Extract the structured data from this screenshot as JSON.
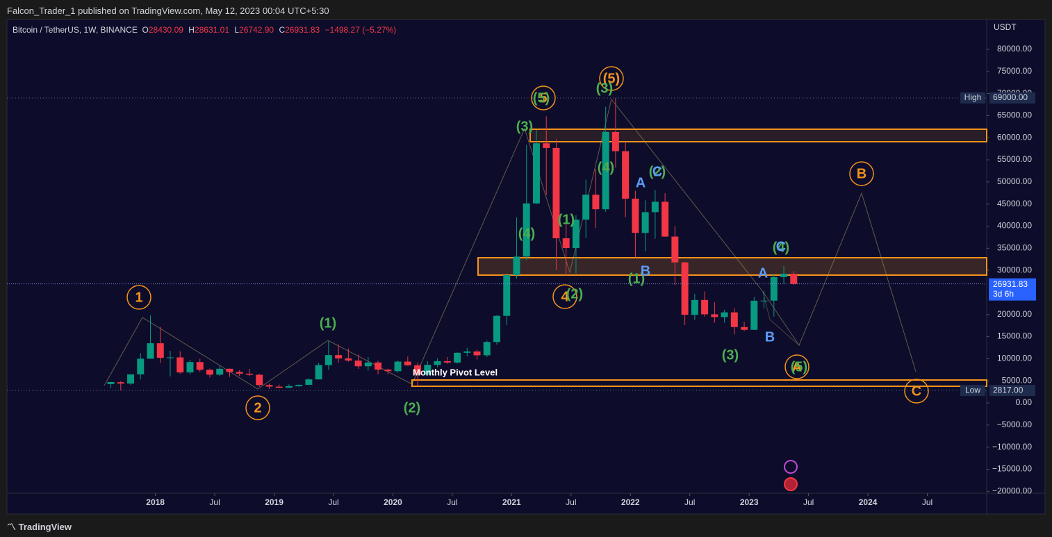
{
  "page": {
    "publisher": "Falcon_Trader_1 published on TradingView.com, May 12, 2023 00:04 UTC+5:30",
    "brand": "TradingView"
  },
  "chart_data": {
    "type": "candlestick",
    "legend": {
      "symbol": "Bitcoin / TetherUS, 1W, BINANCE",
      "open": {
        "label": "O",
        "value": "28430.09"
      },
      "high": {
        "label": "H",
        "value": "28631.01"
      },
      "low": {
        "label": "L",
        "value": "26742.90"
      },
      "close": {
        "label": "C",
        "value": "26931.83"
      },
      "change": "−1498.27 (−5.27%)"
    },
    "y_unit": "USDT",
    "up_color": "#089981",
    "down_color": "#f23645",
    "x": [
      "2017-08",
      "2017-09",
      "2017-10",
      "2017-11",
      "2017-12",
      "2018-01",
      "2018-02",
      "2018-03",
      "2018-04",
      "2018-05",
      "2018-06",
      "2018-07",
      "2018-08",
      "2018-09",
      "2018-10",
      "2018-11",
      "2018-12",
      "2019-01",
      "2019-02",
      "2019-03",
      "2019-04",
      "2019-05",
      "2019-06",
      "2019-07",
      "2019-08",
      "2019-09",
      "2019-10",
      "2019-11",
      "2019-12",
      "2020-01",
      "2020-02",
      "2020-03",
      "2020-04",
      "2020-05",
      "2020-06",
      "2020-07",
      "2020-08",
      "2020-09",
      "2020-10",
      "2020-11",
      "2020-12",
      "2021-01",
      "2021-02",
      "2021-03",
      "2021-04",
      "2021-05",
      "2021-06",
      "2021-07",
      "2021-08",
      "2021-09",
      "2021-10",
      "2021-11",
      "2021-12",
      "2022-01",
      "2022-02",
      "2022-03",
      "2022-04",
      "2022-05",
      "2022-06",
      "2022-07",
      "2022-08",
      "2022-09",
      "2022-10",
      "2022-11",
      "2022-12",
      "2023-01",
      "2023-02",
      "2023-03",
      "2023-04",
      "2023-05"
    ],
    "open": [
      4261,
      4689,
      4378,
      6463,
      10000,
      13500,
      10200,
      10300,
      6900,
      9240,
      7490,
      6390,
      7730,
      7000,
      6620,
      6370,
      4040,
      3690,
      3440,
      3810,
      4100,
      5320,
      8570,
      10820,
      10080,
      9590,
      8290,
      9150,
      7540,
      7190,
      9350,
      8520,
      6410,
      8620,
      9450,
      9140,
      11340,
      11650,
      10780,
      13790,
      19700,
      28920,
      33100,
      45140,
      58740,
      57690,
      37250,
      35040,
      41460,
      47100,
      43820,
      61300,
      56950,
      46210,
      38470,
      43160,
      45510,
      37630,
      31790,
      19940,
      23290,
      20050,
      19420,
      20490,
      17160,
      16540,
      23120,
      23140,
      28470,
      29230
    ],
    "high": [
      4745,
      4939,
      6470,
      11300,
      19798,
      17200,
      11780,
      11700,
      9745,
      10020,
      7754,
      8500,
      7760,
      7400,
      7680,
      6600,
      4390,
      4140,
      4200,
      4140,
      5600,
      9090,
      13970,
      13200,
      12330,
      10950,
      10370,
      9510,
      7750,
      9580,
      10500,
      9190,
      9460,
      10070,
      10380,
      11440,
      12470,
      12070,
      14100,
      19860,
      29300,
      41950,
      58350,
      61780,
      64850,
      59600,
      41330,
      42450,
      50500,
      52920,
      67000,
      69000,
      59050,
      47990,
      45820,
      48190,
      47440,
      40000,
      31950,
      24670,
      25210,
      22800,
      21100,
      21480,
      18390,
      23960,
      25250,
      29180,
      31000,
      29820
    ],
    "low": [
      3400,
      2817,
      4110,
      5380,
      10600,
      9035,
      6000,
      6600,
      6430,
      7000,
      5750,
      6070,
      5880,
      6100,
      6100,
      3650,
      3156,
      3350,
      3370,
      3670,
      4040,
      5310,
      7500,
      9100,
      9320,
      7710,
      7300,
      6510,
      6430,
      6850,
      8410,
      3782,
      6150,
      8100,
      8830,
      8890,
      10520,
      9820,
      10370,
      13190,
      17570,
      28130,
      32300,
      44960,
      47000,
      30000,
      28800,
      29280,
      37330,
      39600,
      43280,
      53260,
      42000,
      32920,
      34320,
      37150,
      37580,
      26700,
      17620,
      18780,
      19520,
      18120,
      18190,
      15480,
      16250,
      16500,
      21350,
      19550,
      26940,
      26742
    ],
    "close": [
      4724,
      4378,
      6463,
      10000,
      13500,
      10200,
      10300,
      6900,
      9240,
      7490,
      6390,
      7730,
      7000,
      6620,
      6370,
      4040,
      3690,
      3440,
      3810,
      4100,
      5320,
      8570,
      10820,
      10080,
      9590,
      8290,
      9150,
      7540,
      7190,
      9350,
      8520,
      6410,
      8620,
      9450,
      9140,
      11340,
      11650,
      10780,
      13790,
      19700,
      28920,
      33100,
      45140,
      58740,
      57690,
      37250,
      35040,
      41460,
      47100,
      43820,
      61300,
      56950,
      46210,
      38470,
      43160,
      45510,
      37630,
      31790,
      19940,
      23290,
      20050,
      19420,
      20490,
      17160,
      16540,
      23120,
      23140,
      28470,
      29230,
      26932
    ],
    "xlim": [
      "2016-10",
      "2025-01"
    ],
    "xticks": [
      {
        "value": "2018-01",
        "label": "2018"
      },
      {
        "value": "2018-07",
        "label": "Jul"
      },
      {
        "value": "2019-01",
        "label": "2019"
      },
      {
        "value": "2019-07",
        "label": "Jul"
      },
      {
        "value": "2020-01",
        "label": "2020"
      },
      {
        "value": "2020-07",
        "label": "Jul"
      },
      {
        "value": "2021-01",
        "label": "2021"
      },
      {
        "value": "2021-07",
        "label": "Jul"
      },
      {
        "value": "2022-01",
        "label": "2022"
      },
      {
        "value": "2022-07",
        "label": "Jul"
      },
      {
        "value": "2023-01",
        "label": "2023"
      },
      {
        "value": "2023-07",
        "label": "Jul"
      },
      {
        "value": "2024-01",
        "label": "2024"
      },
      {
        "value": "2024-07",
        "label": "Jul"
      }
    ],
    "ylim": [
      -20430,
      86440
    ],
    "yticks": [
      {
        "value": 80000,
        "label": "80000.00"
      },
      {
        "value": 75000,
        "label": "75000.00"
      },
      {
        "value": 70000,
        "label": "70000.00"
      },
      {
        "value": 65000,
        "label": "65000.00"
      },
      {
        "value": 60000,
        "label": "60000.00"
      },
      {
        "value": 55000,
        "label": "55000.00"
      },
      {
        "value": 50000,
        "label": "50000.00"
      },
      {
        "value": 45000,
        "label": "45000.00"
      },
      {
        "value": 40000,
        "label": "40000.00"
      },
      {
        "value": 35000,
        "label": "35000.00"
      },
      {
        "value": 30000,
        "label": "30000.00"
      },
      {
        "value": 20000,
        "label": "20000.00"
      },
      {
        "value": 15000,
        "label": "15000.00"
      },
      {
        "value": 10000,
        "label": "10000.00"
      },
      {
        "value": 5000,
        "label": "5000.00"
      },
      {
        "value": 0,
        "label": "0.00"
      },
      {
        "value": -5000,
        "label": "−5000.00"
      },
      {
        "value": -10000,
        "label": "−10000.00"
      },
      {
        "value": -15000,
        "label": "−15000.00"
      },
      {
        "value": -20000,
        "label": "−20000.00"
      }
    ],
    "price_markers": [
      {
        "name": "High",
        "value": 69000,
        "value_label": "69000.00",
        "color": "#1e2b4d"
      },
      {
        "name": "Low",
        "value": 2817,
        "value_label": "2817.00",
        "color": "#1e2b4d"
      }
    ],
    "last_price": {
      "value": 26931.83,
      "value_label": "26931.83",
      "countdown": "3d 6h",
      "color": "#2962ff"
    },
    "annotations": [
      {
        "text": "1",
        "color": "#f7931a",
        "circled": true
      },
      {
        "text": "2",
        "color": "#f7931a",
        "circled": true
      },
      {
        "text": "5",
        "color": "#f7931a",
        "circled": true
      },
      {
        "text": "(5)",
        "color": "#4caf50",
        "circled": false
      },
      {
        "text": "4",
        "color": "#f7931a",
        "circled": true
      },
      {
        "text": "(5)",
        "color": "#f7931a",
        "circled": true
      },
      {
        "text": "B",
        "color": "#f7931a",
        "circled": true
      },
      {
        "text": "A",
        "color": "#f7931a",
        "circled": true
      },
      {
        "text": "(5)",
        "color": "#4caf50",
        "circled": false
      },
      {
        "text": "C",
        "color": "#f7931a",
        "circled": true
      },
      {
        "text": "(3)",
        "color": "#4caf50",
        "circled": false
      },
      {
        "text": "(3)",
        "color": "#4caf50",
        "circled": false
      },
      {
        "text": "(4)",
        "color": "#4caf50",
        "circled": false
      },
      {
        "text": "(2)",
        "color": "#4caf50",
        "circled": false
      },
      {
        "text": "(1)",
        "color": "#4caf50",
        "circled": false
      },
      {
        "text": "(4)",
        "color": "#4caf50",
        "circled": false
      },
      {
        "text": "(2)",
        "color": "#4caf50",
        "circled": false
      },
      {
        "text": "(1)",
        "color": "#4caf50",
        "circled": false
      },
      {
        "text": "(3)",
        "color": "#4caf50",
        "circled": false
      },
      {
        "text": "(1)",
        "color": "#4caf50",
        "circled": false
      },
      {
        "text": "(2)",
        "color": "#4caf50",
        "circled": false
      },
      {
        "text": "(4)",
        "color": "#4caf50",
        "circled": false
      },
      {
        "text": "A",
        "color": "#5b9cf6",
        "circled": false
      },
      {
        "text": "C",
        "color": "#5b9cf6",
        "circled": false
      },
      {
        "text": "B",
        "color": "#5b9cf6",
        "circled": false
      },
      {
        "text": "A",
        "color": "#5b9cf6",
        "circled": false
      },
      {
        "text": "B",
        "color": "#5b9cf6",
        "circled": false
      },
      {
        "text": "C",
        "color": "#5b9cf6",
        "circled": false
      },
      {
        "text": "Monthly Pivot Level",
        "color": "#ffffff",
        "circled": false
      }
    ]
  }
}
